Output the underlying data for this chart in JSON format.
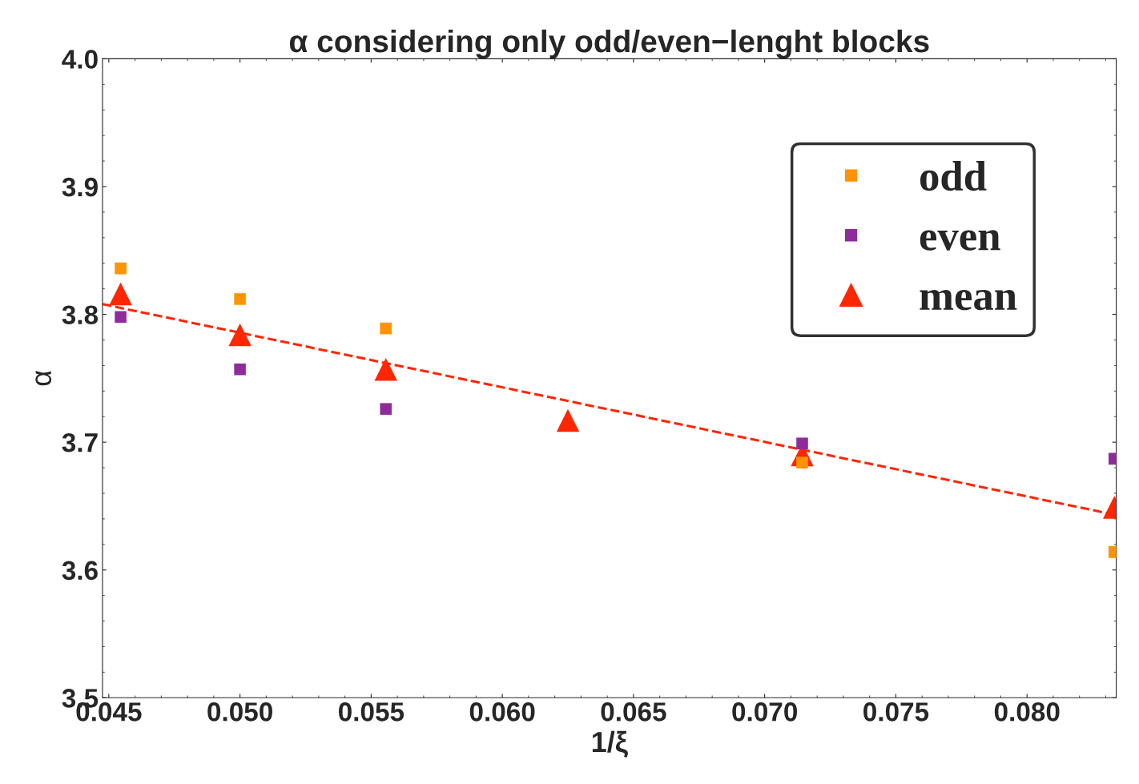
{
  "chart_data": {
    "type": "scatter",
    "title": "α considering only odd/even−lenght blocks",
    "xlabel": "1/ξ",
    "ylabel": "α",
    "x": [
      0.04545,
      0.05,
      0.05556,
      0.0625,
      0.07143,
      0.08333
    ],
    "series": [
      {
        "name": "odd",
        "color": "#ff9300",
        "marker": "square",
        "values": [
          3.836,
          3.812,
          3.789,
          null,
          3.684,
          3.614
        ]
      },
      {
        "name": "even",
        "color": "#8e2c9a",
        "marker": "square",
        "values": [
          3.798,
          3.757,
          3.726,
          null,
          3.699,
          3.687
        ]
      },
      {
        "name": "mean",
        "color": "#ff2600",
        "marker": "triangle",
        "values": [
          3.816,
          3.784,
          3.757,
          3.717,
          3.69,
          3.649
        ]
      },
      {
        "type": "line",
        "color": "#ff2600",
        "line_style": "dashed",
        "marker": "none",
        "x": [
          0.04476,
          0.0834
        ],
        "values": [
          3.808,
          3.643
        ]
      }
    ],
    "xlim": [
      0.04476,
      0.0834
    ],
    "ylim": [
      3.5,
      4.0
    ],
    "xticks": [
      {
        "value": 0.045,
        "label": "0.045"
      },
      {
        "value": 0.05,
        "label": "0.050"
      },
      {
        "value": 0.055,
        "label": "0.055"
      },
      {
        "value": 0.06,
        "label": "0.060"
      },
      {
        "value": 0.065,
        "label": "0.065"
      },
      {
        "value": 0.07,
        "label": "0.070"
      },
      {
        "value": 0.075,
        "label": "0.075"
      },
      {
        "value": 0.08,
        "label": "0.080"
      }
    ],
    "yticks": [
      3.5,
      3.6,
      3.7,
      3.8,
      3.9,
      {
        "value": 4.0,
        "label": "4.0"
      }
    ],
    "grid": false,
    "legend": "top right"
  }
}
